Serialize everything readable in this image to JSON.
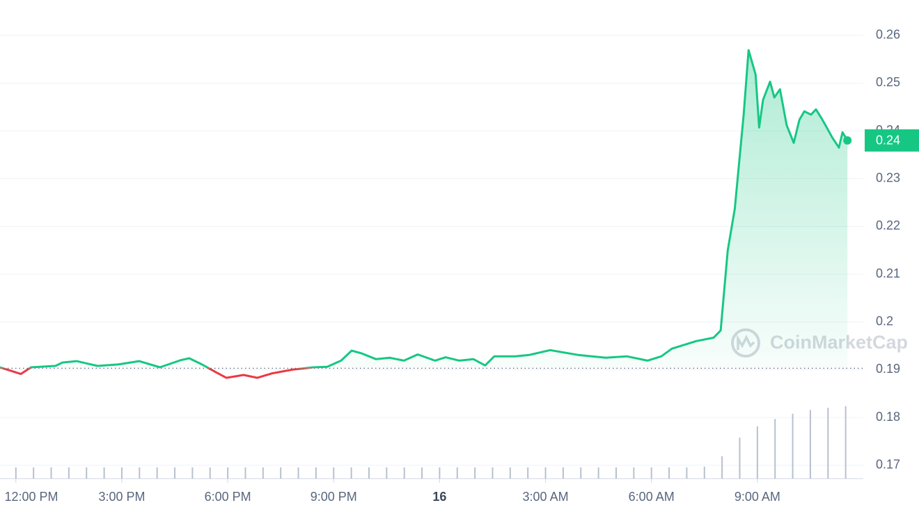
{
  "chart_data": {
    "type": "line",
    "watermark": "CoinMarketCap",
    "x": [
      -0.45,
      0.14,
      0.43,
      1.12,
      1.32,
      1.72,
      2.31,
      2.9,
      3.49,
      4.08,
      4.67,
      4.91,
      5.27,
      5.66,
      5.96,
      6.45,
      6.84,
      7.24,
      7.83,
      8.42,
      8.82,
      9.21,
      9.51,
      9.8,
      10.2,
      10.59,
      10.99,
      11.38,
      11.87,
      12.17,
      12.56,
      12.96,
      13.29,
      13.55,
      14.14,
      14.54,
      15.13,
      15.92,
      16.71,
      17.3,
      17.89,
      18.28,
      18.58,
      19.27,
      19.76,
      19.96,
      20.16,
      20.36,
      20.49,
      20.61,
      20.75,
      20.95,
      21.05,
      21.16,
      21.36,
      21.48,
      21.64,
      21.83,
      22.03,
      22.19,
      22.33,
      22.52,
      22.66,
      22.82,
      22.98,
      23.12,
      23.31,
      23.41,
      23.55
    ],
    "series": [
      {
        "color": "#16c784",
        "down_color": "#ea3943",
        "values": [
          0.1905,
          0.1891,
          0.1905,
          0.1908,
          0.1915,
          0.1918,
          0.1908,
          0.1911,
          0.1918,
          0.1905,
          0.192,
          0.1924,
          0.1911,
          0.1895,
          0.1883,
          0.1889,
          0.1883,
          0.1892,
          0.19,
          0.1905,
          0.1906,
          0.1919,
          0.194,
          0.1934,
          0.1922,
          0.1925,
          0.1919,
          0.1932,
          0.1919,
          0.1926,
          0.1919,
          0.1922,
          0.1909,
          0.1928,
          0.1928,
          0.1931,
          0.1941,
          0.1931,
          0.1925,
          0.1928,
          0.1919,
          0.1928,
          0.1944,
          0.196,
          0.1967,
          0.1982,
          0.215,
          0.2237,
          0.2339,
          0.2433,
          0.2569,
          0.2518,
          0.2407,
          0.2465,
          0.2503,
          0.247,
          0.2487,
          0.2412,
          0.2375,
          0.2423,
          0.2441,
          0.2434,
          0.2445,
          0.2426,
          0.2405,
          0.2386,
          0.2365,
          0.2397,
          0.238
        ]
      }
    ],
    "baseline": 0.1903,
    "last_price": {
      "value": 0.238,
      "label": "0.24"
    },
    "volume": {
      "color": "#a6b0c3",
      "x": [
        0,
        0.5,
        1,
        1.5,
        2,
        2.5,
        3,
        3.5,
        4,
        4.5,
        5,
        5.5,
        6,
        6.5,
        7,
        7.5,
        8,
        8.5,
        9,
        9.5,
        10,
        10.5,
        11,
        11.5,
        12,
        12.5,
        13,
        13.5,
        14,
        14.5,
        15,
        15.5,
        16,
        16.5,
        17,
        17.5,
        18,
        18.5,
        19,
        19.5,
        20,
        20.5,
        21,
        21.5,
        22,
        22.5,
        23,
        23.5
      ],
      "values": [
        15,
        15,
        15,
        15,
        15,
        15,
        15,
        15,
        15,
        15,
        15,
        15,
        15,
        15,
        15,
        15,
        15,
        15,
        15,
        15,
        15,
        15,
        15,
        15,
        15,
        15,
        15,
        15,
        15,
        15,
        15,
        15,
        15,
        15,
        15,
        15,
        15,
        15,
        15,
        16,
        30,
        55,
        70,
        80,
        87,
        92,
        95,
        97
      ]
    },
    "xlim": [
      -0.45,
      24.0
    ],
    "ylim": [
      0.1672,
      0.2674
    ],
    "yticks": [
      0.17,
      0.18,
      0.19,
      0.2,
      0.21,
      0.22,
      0.23,
      0.24,
      0.25,
      0.26
    ],
    "xticks": [
      {
        "value": 0,
        "label": "12:00 PM"
      },
      {
        "value": 3,
        "label": "3:00 PM"
      },
      {
        "value": 6,
        "label": "6:00 PM"
      },
      {
        "value": 9,
        "label": "9:00 PM"
      },
      {
        "value": 12,
        "label": "16"
      },
      {
        "value": 15,
        "label": "3:00 AM"
      },
      {
        "value": 18,
        "label": "6:00 AM"
      },
      {
        "value": 21,
        "label": "9:00 AM"
      }
    ],
    "grid": true
  }
}
